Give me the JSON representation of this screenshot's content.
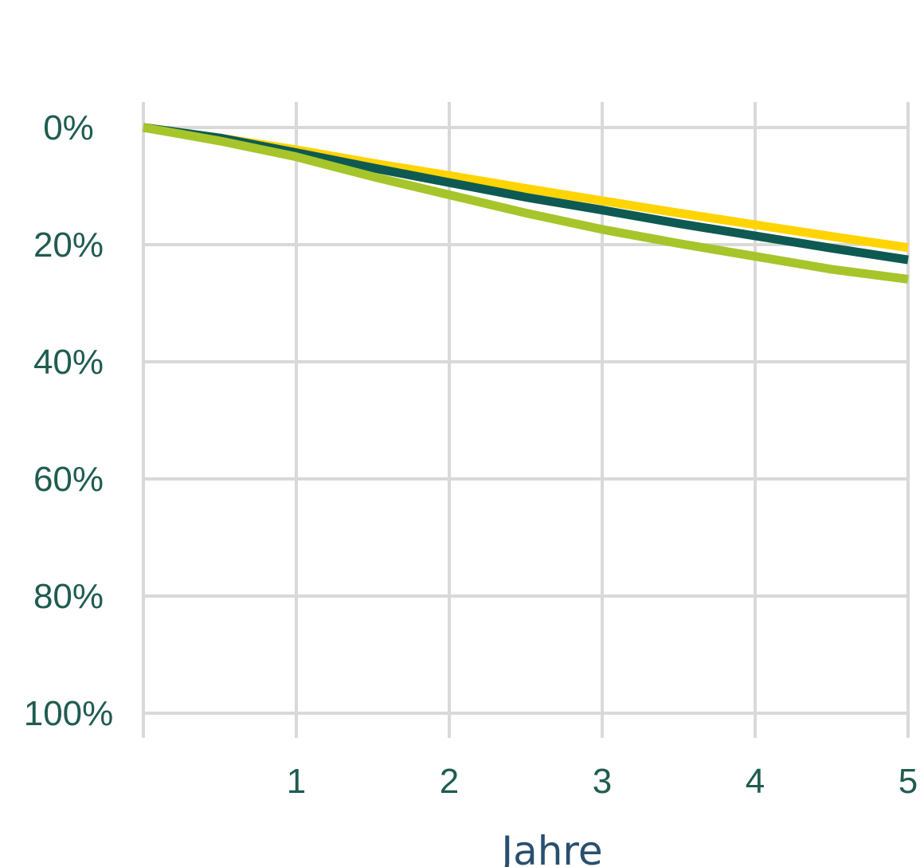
{
  "chart_data": {
    "type": "line",
    "xlabel": "Jahre",
    "ylabel": "",
    "xlim": [
      0,
      5
    ],
    "ylim": [
      0,
      100
    ],
    "y_inverted": true,
    "y_tick_labels": [
      "0%",
      "20%",
      "40%",
      "60%",
      "80%",
      "100%"
    ],
    "x_tick_labels": [
      "1",
      "2",
      "3",
      "4",
      "5"
    ],
    "grid": true,
    "x": [
      0,
      0.5,
      1,
      1.5,
      2,
      2.5,
      3,
      3.5,
      4,
      4.5,
      5
    ],
    "series": [
      {
        "color": "#FFD400",
        "values": [
          0,
          1.8,
          3.8,
          6.1,
          8.2,
          10.4,
          12.5,
          14.6,
          16.6,
          18.6,
          20.5
        ]
      },
      {
        "color": "#0E5A52",
        "values": [
          0,
          1.8,
          4.3,
          6.9,
          9.4,
          11.9,
          14.1,
          16.4,
          18.5,
          20.6,
          22.6
        ]
      },
      {
        "color": "#A6C52A",
        "values": [
          0,
          2.3,
          5.0,
          8.4,
          11.5,
          14.6,
          17.4,
          19.8,
          22.0,
          24.2,
          25.9
        ]
      }
    ],
    "colors": {
      "axis_text": "#1F5C50",
      "axis_title": "#2A4F6E",
      "grid": "#D9D9D9"
    }
  }
}
